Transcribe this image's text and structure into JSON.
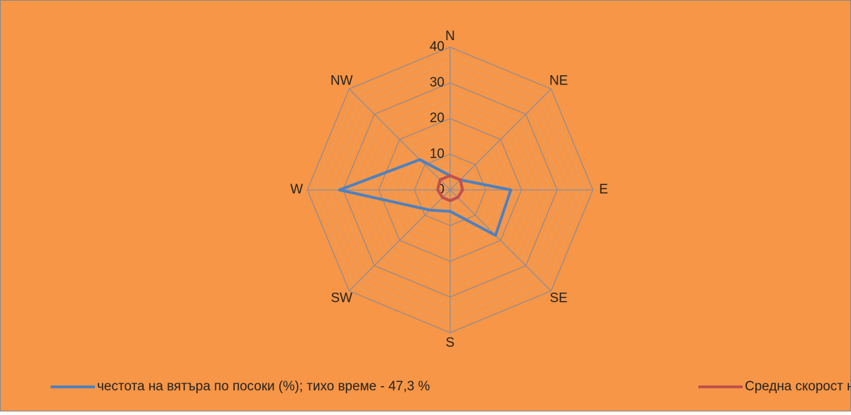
{
  "chart_data": {
    "type": "radar",
    "categories": [
      "N",
      "NE",
      "E",
      "SE",
      "S",
      "SW",
      "W",
      "NW"
    ],
    "series": [
      {
        "name": "честота на вятъра по посоки (%); тихо време - 47,3 %",
        "color": "#4f81bd",
        "values": [
          4,
          4,
          17,
          18,
          6,
          8,
          31,
          12
        ]
      },
      {
        "name": "Средна скорост на вятъра (m/s)",
        "color": "#c0504d",
        "values": [
          4,
          4,
          3.5,
          3,
          3,
          3,
          3.5,
          4
        ]
      }
    ],
    "ylim": [
      0,
      40
    ],
    "yticks": [
      0,
      10,
      20,
      30,
      40
    ],
    "yminorticks": [
      2,
      4,
      6,
      8,
      12,
      14,
      16,
      18,
      22,
      24,
      26,
      28,
      32,
      34,
      36,
      38
    ],
    "grid": true,
    "legend": "bottom",
    "background": "#f79646"
  }
}
